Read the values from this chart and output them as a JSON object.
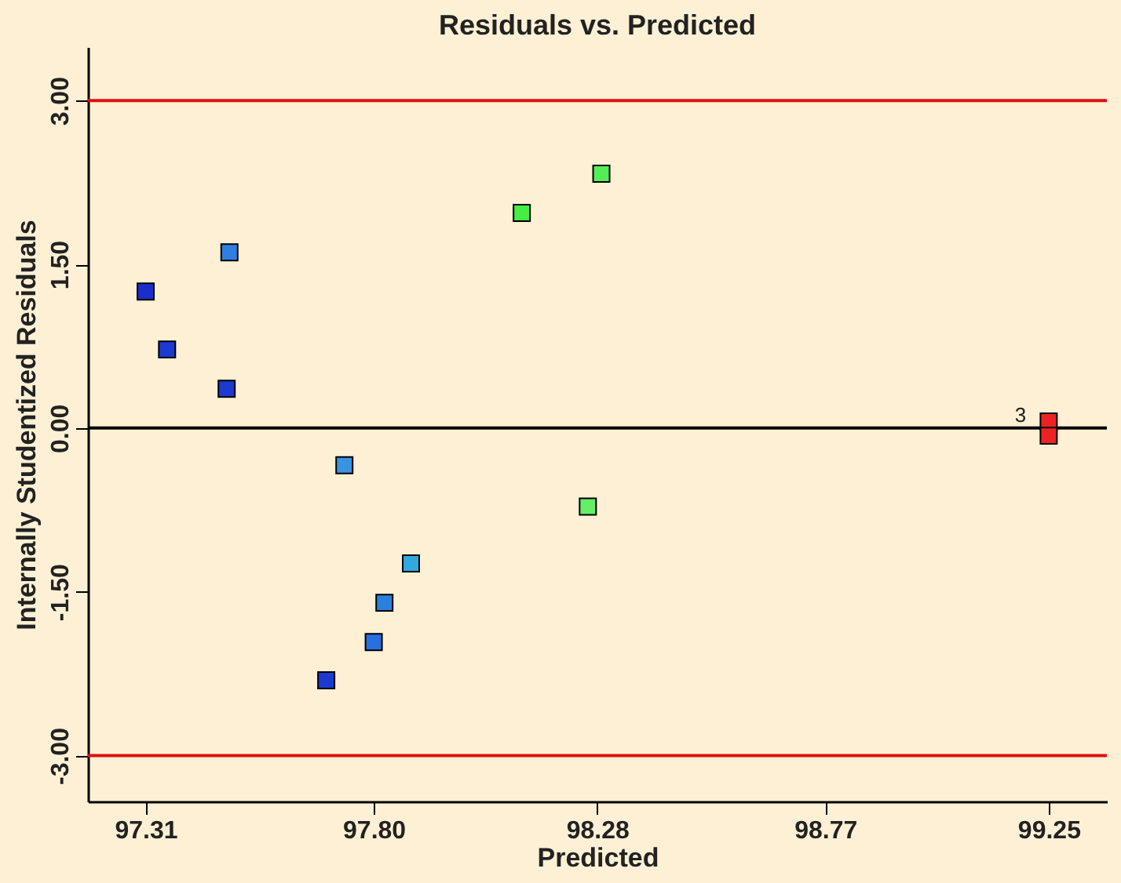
{
  "chart_data": {
    "type": "scatter",
    "title": "Residuals vs. Predicted",
    "xlabel": "Predicted",
    "ylabel": "Internally Studentized Residuals",
    "x": [
      97.31,
      97.356,
      97.484,
      97.49,
      97.698,
      97.737,
      97.8,
      97.823,
      97.88,
      98.118,
      98.26,
      98.289,
      99.25,
      99.25
    ],
    "values": [
      1.25,
      0.72,
      0.36,
      1.61,
      -2.31,
      -0.34,
      -1.96,
      -1.6,
      -1.24,
      1.97,
      -0.72,
      2.33,
      0.06,
      -0.07
    ],
    "colors": [
      "#1a2ecc",
      "#1a3ad0",
      "#1a3ad0",
      "#2f7fe0",
      "#1a3ad0",
      "#3a93e0",
      "#2a6fe0",
      "#2a80e0",
      "#30a8e0",
      "#44ee44",
      "#66ee66",
      "#55ee55",
      "#ee2222",
      "#ee2222"
    ],
    "marker": "square",
    "xlim": [
      97.186,
      99.375
    ],
    "ylim": [
      -3.42,
      3.49
    ],
    "xticks": [
      97.31,
      {
        "value": 97.8,
        "label": "97.80"
      },
      98.28,
      98.77,
      99.25
    ],
    "yticks": [
      {
        "value": -3,
        "label": "-3.00"
      },
      {
        "value": -1.5,
        "label": "-1.50"
      },
      {
        "value": 0,
        "label": "0.00"
      },
      {
        "value": 1.5,
        "label": "1.50"
      },
      {
        "value": 3,
        "label": "3.00"
      }
    ],
    "grid": false,
    "ref_lines": [
      {
        "axis": "y",
        "value": 3,
        "color": "#e01010"
      },
      {
        "axis": "y",
        "value": -3,
        "color": "#e01010"
      },
      {
        "axis": "y",
        "value": 0,
        "color": "#000000"
      }
    ],
    "annotations": [
      {
        "text": "3",
        "x": 99.25,
        "y": 0
      }
    ]
  }
}
